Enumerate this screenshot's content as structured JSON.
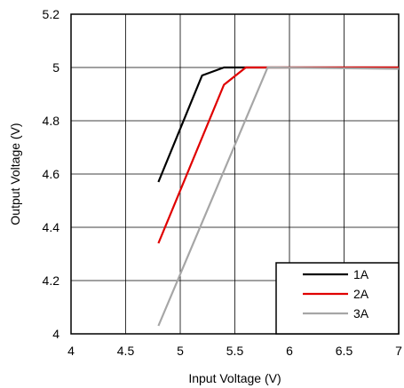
{
  "chart_data": {
    "type": "line",
    "xlabel": "Input Voltage (V)",
    "ylabel": "Output Voltage (V)",
    "xlim": [
      4,
      7
    ],
    "ylim": [
      4,
      5.2
    ],
    "x_ticks": [
      4,
      4.5,
      5,
      5.5,
      6,
      6.5,
      7
    ],
    "x_tick_labels": [
      "4",
      "4.5",
      "5",
      "5.5",
      "6",
      "6.5",
      "7"
    ],
    "y_ticks": [
      4,
      4.2,
      4.4,
      4.6,
      4.8,
      5,
      5.2
    ],
    "y_tick_labels": [
      "4",
      "4.2",
      "4.4",
      "4.6",
      "4.8",
      "5",
      "5.2"
    ],
    "grid": true,
    "legend_position": "bottom-right",
    "series": [
      {
        "name": "1A",
        "color": "#000000",
        "points": [
          [
            4.8,
            4.57
          ],
          [
            5.2,
            4.97
          ],
          [
            5.4,
            5.0
          ],
          [
            7.0,
            5.0
          ]
        ]
      },
      {
        "name": "2A",
        "color": "#e00000",
        "points": [
          [
            4.8,
            4.34
          ],
          [
            5.4,
            4.935
          ],
          [
            5.6,
            5.0
          ],
          [
            7.0,
            5.0
          ]
        ]
      },
      {
        "name": "3A",
        "color": "#a6a6a6",
        "points": [
          [
            4.8,
            4.03
          ],
          [
            5.8,
            5.0
          ],
          [
            7.0,
            4.995
          ]
        ]
      }
    ]
  }
}
